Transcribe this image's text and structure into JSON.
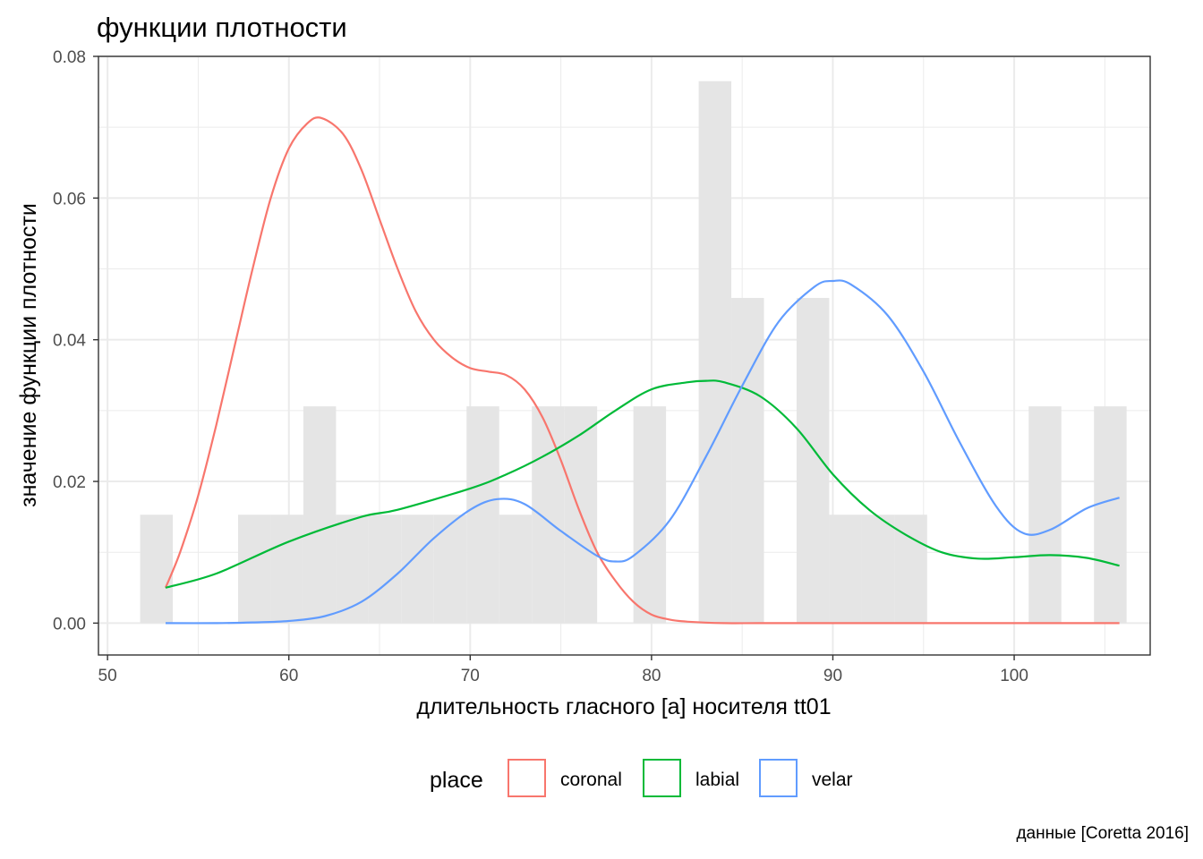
{
  "chart_data": {
    "type": "area",
    "title": "функции плотности",
    "xlabel": "длительность гласного [a] носителя tt01",
    "ylabel": "значение функции плотности",
    "caption": "данные [Coretta 2016]",
    "xlim": [
      49.5,
      107.5
    ],
    "ylim": [
      -0.0045,
      0.08
    ],
    "x_ticks": [
      50,
      60,
      70,
      80,
      90,
      100
    ],
    "x_tick_labels": [
      "50",
      "60",
      "70",
      "80",
      "90",
      "100"
    ],
    "y_ticks": [
      0.0,
      0.02,
      0.04,
      0.06,
      0.08
    ],
    "y_tick_labels": [
      "0.00",
      "0.02",
      "0.04",
      "0.06",
      "0.08"
    ],
    "grid": true,
    "legend": {
      "title": "place",
      "position": "bottom",
      "entries": [
        {
          "label": "coronal",
          "color": "#F8766D"
        },
        {
          "label": "labial",
          "color": "#00BA38"
        },
        {
          "label": "velar",
          "color": "#619CFF"
        }
      ]
    },
    "histogram": {
      "fill": "#e5e5e5",
      "bin_width": 1.8,
      "bins": [
        {
          "x0": 51.8,
          "x1": 53.6,
          "density": 0.0153
        },
        {
          "x0": 57.2,
          "x1": 59.0,
          "density": 0.0153
        },
        {
          "x0": 59.0,
          "x1": 60.8,
          "density": 0.0153
        },
        {
          "x0": 60.8,
          "x1": 62.6,
          "density": 0.0306
        },
        {
          "x0": 62.6,
          "x1": 64.4,
          "density": 0.0153
        },
        {
          "x0": 64.4,
          "x1": 66.2,
          "density": 0.0153
        },
        {
          "x0": 66.2,
          "x1": 68.0,
          "density": 0.0153
        },
        {
          "x0": 68.0,
          "x1": 69.8,
          "density": 0.0153
        },
        {
          "x0": 69.8,
          "x1": 71.6,
          "density": 0.0306
        },
        {
          "x0": 71.6,
          "x1": 73.4,
          "density": 0.0153
        },
        {
          "x0": 73.4,
          "x1": 75.2,
          "density": 0.0306
        },
        {
          "x0": 75.2,
          "x1": 77.0,
          "density": 0.0306
        },
        {
          "x0": 79.0,
          "x1": 80.8,
          "density": 0.0306
        },
        {
          "x0": 82.6,
          "x1": 84.4,
          "density": 0.0765
        },
        {
          "x0": 84.4,
          "x1": 86.2,
          "density": 0.0459
        },
        {
          "x0": 88.0,
          "x1": 89.8,
          "density": 0.0459
        },
        {
          "x0": 89.8,
          "x1": 91.6,
          "density": 0.0153
        },
        {
          "x0": 91.6,
          "x1": 93.4,
          "density": 0.0153
        },
        {
          "x0": 93.4,
          "x1": 95.2,
          "density": 0.0153
        },
        {
          "x0": 100.8,
          "x1": 102.6,
          "density": 0.0306
        },
        {
          "x0": 104.4,
          "x1": 106.2,
          "density": 0.0306
        }
      ]
    },
    "series": [
      {
        "name": "coronal",
        "color": "#F8766D",
        "x": [
          53.2,
          54.0,
          55.0,
          56.0,
          57.0,
          58.0,
          59.0,
          60.0,
          61.0,
          61.8,
          63.0,
          64.0,
          65.0,
          66.0,
          67.0,
          68.0,
          69.0,
          70.0,
          71.0,
          72.0,
          73.0,
          74.0,
          75.0,
          76.0,
          77.0,
          78.0,
          79.0,
          80.0,
          81.0,
          82.0,
          84.0,
          86.0,
          90.0,
          95.0,
          100.0,
          105.8
        ],
        "y": [
          0.005,
          0.01,
          0.018,
          0.028,
          0.039,
          0.05,
          0.06,
          0.067,
          0.0705,
          0.0713,
          0.069,
          0.064,
          0.057,
          0.05,
          0.044,
          0.04,
          0.0375,
          0.036,
          0.0355,
          0.035,
          0.033,
          0.029,
          0.023,
          0.016,
          0.01,
          0.006,
          0.003,
          0.0012,
          0.0005,
          0.0002,
          0.0,
          0.0,
          0.0,
          0.0,
          0.0,
          0.0
        ]
      },
      {
        "name": "labial",
        "color": "#00BA38",
        "x": [
          53.2,
          56.0,
          60.0,
          64.0,
          66.0,
          70.0,
          72.0,
          74.0,
          76.0,
          78.0,
          80.0,
          82.0,
          83.0,
          84.0,
          86.0,
          88.0,
          90.0,
          92.0,
          94.0,
          96.0,
          98.0,
          100.0,
          102.0,
          104.0,
          105.8
        ],
        "y": [
          0.005,
          0.007,
          0.0115,
          0.015,
          0.016,
          0.019,
          0.021,
          0.0235,
          0.0265,
          0.03,
          0.033,
          0.034,
          0.0342,
          0.034,
          0.032,
          0.0275,
          0.021,
          0.016,
          0.0125,
          0.01,
          0.0091,
          0.0093,
          0.0096,
          0.0092,
          0.0081
        ]
      },
      {
        "name": "velar",
        "color": "#619CFF",
        "x": [
          53.2,
          56.0,
          58.0,
          60.0,
          62.0,
          64.0,
          66.0,
          68.0,
          70.0,
          71.5,
          73.0,
          75.0,
          77.0,
          78.0,
          79.0,
          81.0,
          83.0,
          85.0,
          87.0,
          89.0,
          90.0,
          91.0,
          93.0,
          95.0,
          97.0,
          99.0,
          100.5,
          102.0,
          104.0,
          105.8
        ],
        "y": [
          0.0,
          0.0,
          0.0001,
          0.0003,
          0.001,
          0.003,
          0.007,
          0.012,
          0.016,
          0.0175,
          0.0168,
          0.013,
          0.0095,
          0.0087,
          0.0095,
          0.0145,
          0.0235,
          0.0335,
          0.0425,
          0.0475,
          0.0483,
          0.0478,
          0.0435,
          0.0355,
          0.0255,
          0.0165,
          0.0127,
          0.0132,
          0.0162,
          0.0177
        ]
      }
    ]
  }
}
